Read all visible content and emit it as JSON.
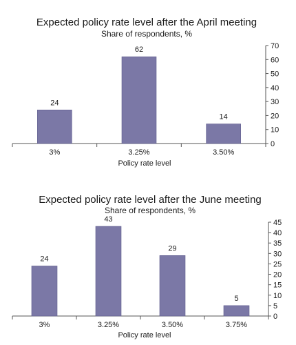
{
  "chart_data": [
    {
      "type": "bar",
      "title": "Expected policy rate level after the April meeting",
      "subtitle": "Share of respondents, %",
      "xlabel": "Policy rate level",
      "categories": [
        "3%",
        "3.25%",
        "3.50%"
      ],
      "values": [
        24,
        62,
        14
      ],
      "ylim": [
        0,
        70
      ],
      "yticks": [
        0,
        10,
        20,
        30,
        40,
        50,
        60,
        70
      ],
      "y_axis_side": "right",
      "grid": false,
      "bar_color": "#7b78a6"
    },
    {
      "type": "bar",
      "title": "Expected policy rate level after the June meeting",
      "subtitle": "Share of respondents, %",
      "xlabel": "Policy rate level",
      "categories": [
        "3%",
        "3.25%",
        "3.50%",
        "3.75%"
      ],
      "values": [
        24,
        43,
        29,
        5
      ],
      "ylim": [
        0,
        45
      ],
      "yticks": [
        0,
        5,
        10,
        15,
        20,
        25,
        30,
        35,
        40,
        45
      ],
      "y_axis_side": "right",
      "grid": false,
      "bar_color": "#7b78a6"
    }
  ]
}
